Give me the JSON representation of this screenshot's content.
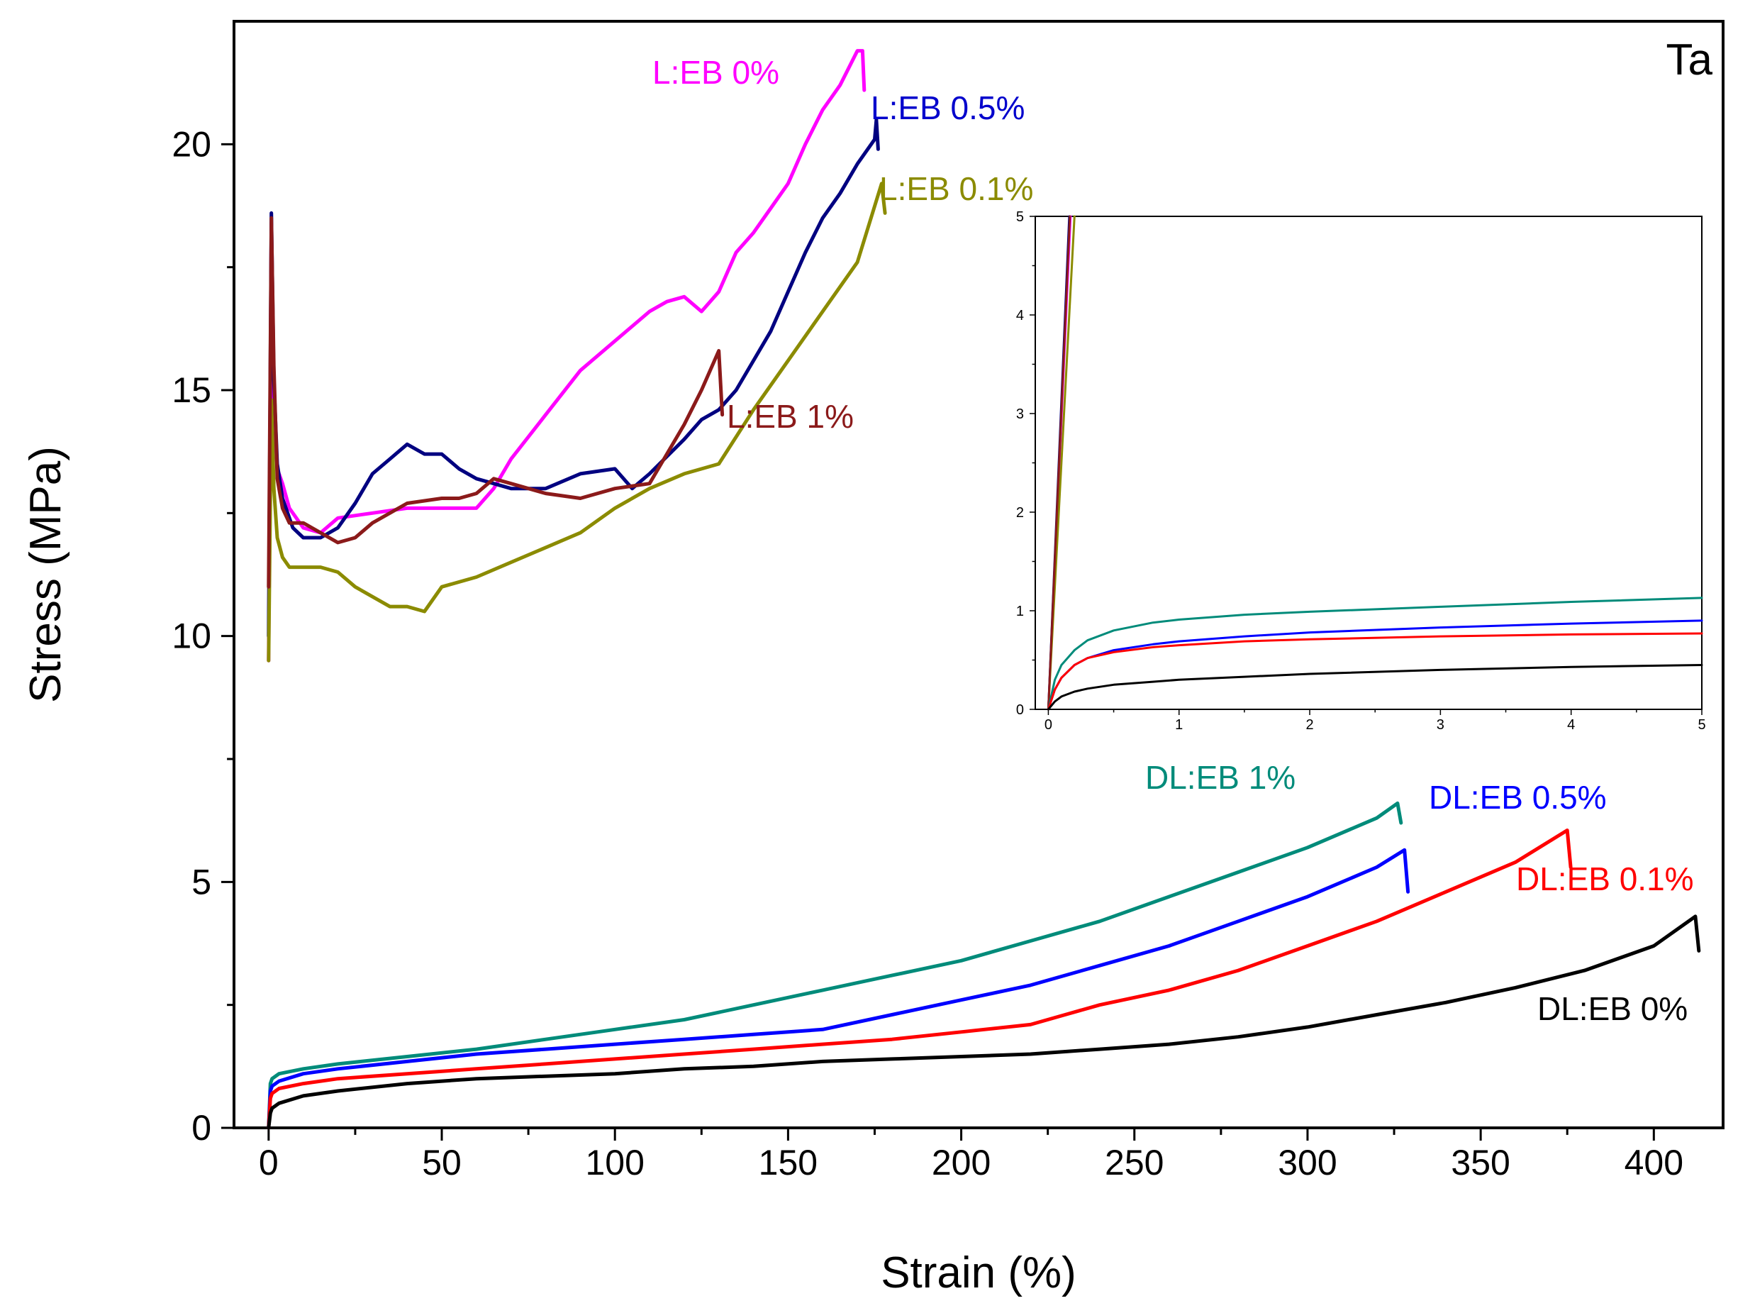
{
  "chart_data": [
    {
      "type": "line",
      "panel_label": "Ta",
      "xlabel": "Strain (%)",
      "ylabel": "Stress (MPa)",
      "xlim": [
        -10,
        420
      ],
      "ylim": [
        0,
        22.5
      ],
      "xticks": [
        0,
        50,
        100,
        150,
        200,
        250,
        300,
        350,
        400
      ],
      "yticks": [
        0,
        5,
        10,
        15,
        20
      ],
      "xtick_labels": [
        "0",
        "50",
        "100",
        "150",
        "200",
        "250",
        "300",
        "350",
        "400"
      ],
      "ytick_labels": [
        "0",
        "5",
        "10",
        "15",
        "20"
      ],
      "grid": false,
      "series": [
        {
          "name": "L:EB 0%",
          "color": "#ff00ff",
          "x": [
            0,
            0.8,
            1.5,
            2.5,
            4,
            6,
            10,
            15,
            20,
            30,
            40,
            50,
            55,
            60,
            65,
            70,
            80,
            90,
            100,
            110,
            115,
            120,
            125,
            130,
            135,
            140,
            145,
            150,
            155,
            160,
            165,
            170,
            171.5,
            172
          ],
          "y": [
            9.5,
            18.4,
            14.5,
            13.4,
            13.1,
            12.6,
            12.2,
            12.1,
            12.4,
            12.5,
            12.6,
            12.6,
            12.6,
            12.6,
            13.0,
            13.6,
            14.5,
            15.4,
            16.0,
            16.6,
            16.8,
            16.9,
            16.6,
            17.0,
            17.8,
            18.2,
            18.7,
            19.2,
            20.0,
            20.7,
            21.2,
            21.9,
            21.9,
            21.1
          ]
        },
        {
          "name": "L:EB 0.5%",
          "color": "#000080",
          "x": [
            0,
            0.8,
            1.5,
            2.5,
            4,
            7,
            10,
            15,
            20,
            25,
            30,
            35,
            40,
            45,
            50,
            55,
            60,
            65,
            70,
            80,
            90,
            100,
            105,
            110,
            120,
            125,
            130,
            135,
            140,
            145,
            150,
            155,
            160,
            165,
            170,
            175,
            175.5,
            176
          ],
          "y": [
            10.0,
            18.6,
            15.2,
            13.5,
            12.8,
            12.2,
            12.0,
            12.0,
            12.2,
            12.7,
            13.3,
            13.6,
            13.9,
            13.7,
            13.7,
            13.4,
            13.2,
            13.1,
            13.0,
            13.0,
            13.3,
            13.4,
            13.0,
            13.3,
            14.0,
            14.4,
            14.6,
            15.0,
            15.6,
            16.2,
            17.0,
            17.8,
            18.5,
            19.0,
            19.6,
            20.1,
            20.5,
            19.9
          ]
        },
        {
          "name": "L:EB 0.1%",
          "color": "#8b8b00",
          "x": [
            0,
            0.8,
            1.5,
            2.5,
            4,
            6,
            10,
            15,
            20,
            25,
            30,
            35,
            40,
            45,
            50,
            60,
            70,
            80,
            90,
            100,
            110,
            120,
            130,
            140,
            150,
            160,
            170,
            177,
            178
          ],
          "y": [
            9.5,
            14.8,
            13.0,
            12.0,
            11.6,
            11.4,
            11.4,
            11.4,
            11.3,
            11.0,
            10.8,
            10.6,
            10.6,
            10.5,
            11.0,
            11.2,
            11.5,
            11.8,
            12.1,
            12.6,
            13.0,
            13.3,
            13.5,
            14.6,
            15.6,
            16.6,
            17.6,
            19.2,
            18.6
          ]
        },
        {
          "name": "L:EB 1%",
          "color": "#8b1a1a",
          "x": [
            0,
            0.8,
            1.5,
            2.5,
            4,
            6,
            10,
            15,
            20,
            25,
            30,
            35,
            40,
            50,
            55,
            60,
            65,
            70,
            80,
            90,
            100,
            110,
            120,
            125,
            130,
            131
          ],
          "y": [
            11.0,
            18.5,
            15.5,
            13.2,
            12.6,
            12.3,
            12.3,
            12.1,
            11.9,
            12.0,
            12.3,
            12.5,
            12.7,
            12.8,
            12.8,
            12.9,
            13.2,
            13.1,
            12.9,
            12.8,
            13.0,
            13.1,
            14.3,
            15.0,
            15.8,
            14.5
          ]
        },
        {
          "name": "DL:EB 1%",
          "color": "#008b7a",
          "x": [
            0,
            0.5,
            1,
            3,
            10,
            20,
            40,
            60,
            80,
            100,
            120,
            140,
            160,
            180,
            200,
            220,
            240,
            260,
            280,
            300,
            320,
            326,
            327
          ],
          "y": [
            0,
            0.9,
            1.0,
            1.1,
            1.2,
            1.3,
            1.45,
            1.6,
            1.8,
            2.0,
            2.2,
            2.5,
            2.8,
            3.1,
            3.4,
            3.8,
            4.2,
            4.7,
            5.2,
            5.7,
            6.3,
            6.6,
            6.2
          ]
        },
        {
          "name": "DL:EB 0.5%",
          "color": "#0000ff",
          "x": [
            0,
            0.5,
            1,
            3,
            10,
            20,
            40,
            60,
            80,
            100,
            120,
            140,
            160,
            180,
            200,
            220,
            240,
            260,
            280,
            300,
            320,
            328,
            329
          ],
          "y": [
            0,
            0.75,
            0.85,
            0.95,
            1.1,
            1.2,
            1.35,
            1.5,
            1.6,
            1.7,
            1.8,
            1.9,
            2.0,
            2.3,
            2.6,
            2.9,
            3.3,
            3.7,
            4.2,
            4.7,
            5.3,
            5.65,
            4.8
          ]
        },
        {
          "name": "DL:EB 0.1%",
          "color": "#ff0000",
          "x": [
            0,
            0.5,
            1,
            3,
            10,
            20,
            40,
            60,
            80,
            100,
            120,
            140,
            160,
            180,
            200,
            220,
            230,
            240,
            260,
            280,
            300,
            320,
            340,
            360,
            375,
            376
          ],
          "y": [
            0,
            0.6,
            0.7,
            0.8,
            0.9,
            1.0,
            1.1,
            1.2,
            1.3,
            1.4,
            1.5,
            1.6,
            1.7,
            1.8,
            1.95,
            2.1,
            2.3,
            2.5,
            2.8,
            3.2,
            3.7,
            4.2,
            4.8,
            5.4,
            6.05,
            5.3
          ]
        },
        {
          "name": "DL:EB 0%",
          "color": "#000000",
          "x": [
            0,
            0.5,
            1,
            3,
            10,
            20,
            40,
            60,
            80,
            100,
            120,
            140,
            160,
            180,
            200,
            220,
            240,
            260,
            280,
            300,
            320,
            340,
            360,
            380,
            400,
            412,
            413
          ],
          "y": [
            0,
            0.3,
            0.4,
            0.5,
            0.65,
            0.75,
            0.9,
            1.0,
            1.05,
            1.1,
            1.2,
            1.25,
            1.35,
            1.4,
            1.45,
            1.5,
            1.6,
            1.7,
            1.85,
            2.05,
            2.3,
            2.55,
            2.85,
            3.2,
            3.7,
            4.3,
            3.6
          ]
        }
      ]
    },
    {
      "type": "line",
      "inset": true,
      "xlim": [
        -0.1,
        5
      ],
      "ylim": [
        0,
        5
      ],
      "xticks": [
        0,
        1,
        2,
        3,
        4,
        5
      ],
      "yticks": [
        0,
        1,
        2,
        3,
        4,
        5
      ],
      "xtick_labels": [
        "0",
        "1",
        "2",
        "3",
        "4",
        "5"
      ],
      "ytick_labels": [
        "0",
        "1",
        "2",
        "3",
        "4",
        "5"
      ],
      "grid": false,
      "series": [
        {
          "name": "L:EB 0%",
          "color": "#ff00ff",
          "x": [
            0,
            0.17
          ],
          "y": [
            0,
            5
          ]
        },
        {
          "name": "L:EB 0.5%",
          "color": "#000080",
          "x": [
            0,
            0.16
          ],
          "y": [
            0,
            5
          ]
        },
        {
          "name": "L:EB 0.1%",
          "color": "#8b8b00",
          "x": [
            0,
            0.2
          ],
          "y": [
            0,
            5
          ]
        },
        {
          "name": "L:EB 1%",
          "color": "#8b1a1a",
          "x": [
            0,
            0.165
          ],
          "y": [
            0,
            5
          ]
        },
        {
          "name": "DL:EB 1%",
          "color": "#008b7a",
          "x": [
            0,
            0.05,
            0.1,
            0.2,
            0.3,
            0.5,
            0.8,
            1,
            1.5,
            2,
            3,
            4,
            5
          ],
          "y": [
            0,
            0.3,
            0.45,
            0.6,
            0.7,
            0.8,
            0.88,
            0.91,
            0.96,
            0.99,
            1.04,
            1.09,
            1.13
          ]
        },
        {
          "name": "DL:EB 0.5%",
          "color": "#0000ff",
          "x": [
            0,
            0.05,
            0.1,
            0.2,
            0.3,
            0.5,
            0.8,
            1,
            1.5,
            2,
            3,
            4,
            5
          ],
          "y": [
            0,
            0.2,
            0.32,
            0.45,
            0.52,
            0.6,
            0.66,
            0.69,
            0.74,
            0.78,
            0.83,
            0.87,
            0.9
          ]
        },
        {
          "name": "DL:EB 0.1%",
          "color": "#ff0000",
          "x": [
            0,
            0.05,
            0.1,
            0.2,
            0.3,
            0.5,
            0.8,
            1,
            1.5,
            2,
            3,
            4,
            5
          ],
          "y": [
            0,
            0.2,
            0.32,
            0.45,
            0.52,
            0.58,
            0.63,
            0.65,
            0.69,
            0.71,
            0.74,
            0.76,
            0.77
          ]
        },
        {
          "name": "DL:EB 0%",
          "color": "#000000",
          "x": [
            0,
            0.05,
            0.1,
            0.2,
            0.3,
            0.5,
            0.8,
            1,
            1.5,
            2,
            3,
            4,
            5
          ],
          "y": [
            0,
            0.08,
            0.13,
            0.18,
            0.21,
            0.25,
            0.28,
            0.3,
            0.33,
            0.36,
            0.4,
            0.43,
            0.45
          ]
        }
      ]
    }
  ]
}
